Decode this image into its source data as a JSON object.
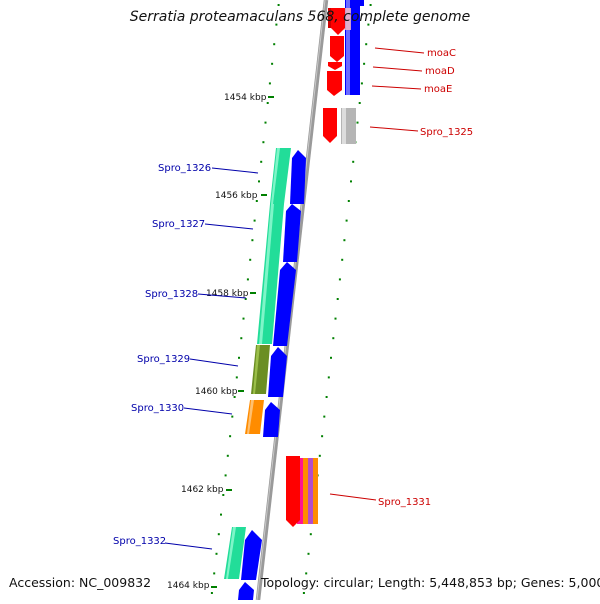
{
  "title": "Serratia proteamaculans 568, complete genome",
  "footer": {
    "accession": "Accession: NC_009832",
    "summary": "Topology: circular; Length: 5,448,853 bp; Genes: 5,000"
  },
  "colors": {
    "forward_strand": "#0000ff",
    "reverse_strand": "#ff0000",
    "tick": "#008000",
    "backbone": "#999999",
    "left_label": "#0000aa",
    "right_label": "#cc0000"
  },
  "kbp_ticks": [
    {
      "label": "1454 kbp"
    },
    {
      "label": "1456 kbp"
    },
    {
      "label": "1458 kbp"
    },
    {
      "label": "1460 kbp"
    },
    {
      "label": "1462 kbp"
    },
    {
      "label": "1464 kbp"
    }
  ],
  "genes_left": [
    {
      "label": "Spro_1326",
      "cog_color": "#22dd99"
    },
    {
      "label": "Spro_1327",
      "cog_color": "#22dd99"
    },
    {
      "label": "Spro_1328",
      "cog_color": "#22dd99"
    },
    {
      "label": "Spro_1329",
      "cog_color": "#6b8e23"
    },
    {
      "label": "Spro_1330",
      "cog_color": "#ff8c00"
    },
    {
      "label": "Spro_1332",
      "cog_color": "#22dd99"
    }
  ],
  "genes_right": [
    {
      "label": "moaC"
    },
    {
      "label": "moaD"
    },
    {
      "label": "moaE"
    },
    {
      "label": "Spro_1325"
    },
    {
      "label": "Spro_1331"
    }
  ]
}
